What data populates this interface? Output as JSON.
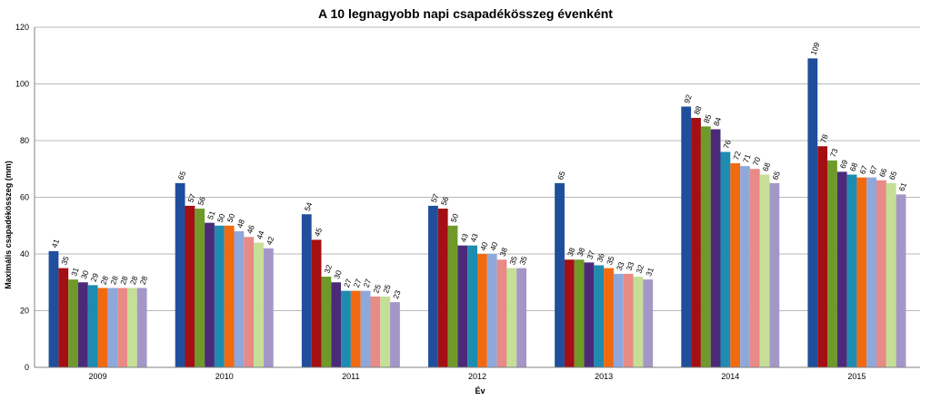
{
  "chart_data": {
    "type": "bar",
    "title": "A 10 legnagyobb napi csapadékösszeg évenként",
    "xlabel": "Év",
    "ylabel": "Maximális csapadékösszeg (mm)",
    "ylim": [
      0,
      120
    ],
    "yticks": [
      0,
      20,
      40,
      60,
      80,
      100,
      120
    ],
    "grid": true,
    "legend": "none",
    "categories": [
      "2009",
      "2010",
      "2011",
      "2012",
      "2013",
      "2014",
      "2015"
    ],
    "values": [
      [
        41,
        35,
        31,
        30,
        29,
        28,
        28,
        28,
        28,
        28
      ],
      [
        65,
        57,
        56,
        51,
        50,
        50,
        48,
        46,
        44,
        42
      ],
      [
        54,
        45,
        32,
        30,
        27,
        27,
        27,
        25,
        25,
        23
      ],
      [
        57,
        56,
        50,
        43,
        43,
        40,
        40,
        38,
        35,
        35
      ],
      [
        65,
        38,
        38,
        37,
        36,
        35,
        33,
        33,
        32,
        31
      ],
      [
        92,
        88,
        85,
        84,
        76,
        72,
        71,
        70,
        68,
        65
      ],
      [
        109,
        78,
        73,
        69,
        68,
        67,
        67,
        66,
        65,
        61
      ]
    ],
    "bar_colors": [
      "#1f4e9c",
      "#a30f12",
      "#6f9a2a",
      "#4b2b79",
      "#1e8bb0",
      "#f26a10",
      "#8fa8dc",
      "#e88a86",
      "#c5df96",
      "#a497c8"
    ]
  }
}
